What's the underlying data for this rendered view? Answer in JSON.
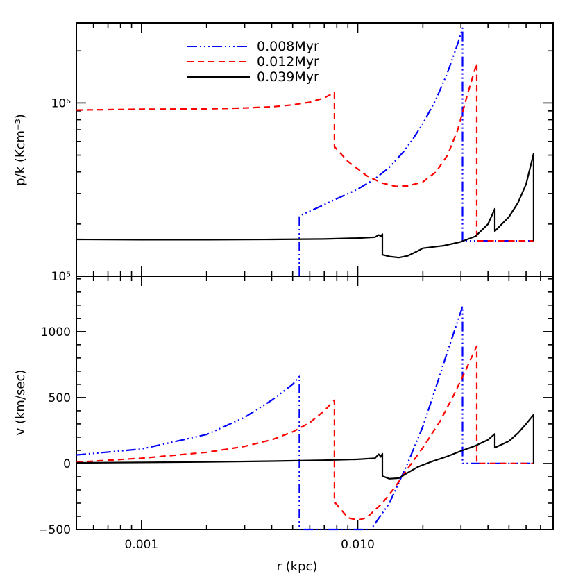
{
  "chart_data": [
    {
      "type": "line",
      "panel": "top",
      "ylabel": "p/k (Kcm⁻³)",
      "xlabel": "",
      "xscale": "log",
      "yscale": "log",
      "xlim": [
        0.0005,
        0.08
      ],
      "ylim": [
        100000,
        2900000
      ],
      "grid": false,
      "legend_position": "top-left",
      "yticks": [
        {
          "value": 1000000,
          "label": "10⁶"
        },
        {
          "value": 100000,
          "label": "10⁵"
        }
      ],
      "series": [
        {
          "name": "0.008Myr",
          "color": "#0000ff",
          "dash": "dash-dot-dot-dot",
          "x": [
            0.00537,
            0.00537,
            0.0055,
            0.0065,
            0.008,
            0.01,
            0.012,
            0.014,
            0.0162,
            0.0165,
            0.018,
            0.02,
            0.023,
            0.026,
            0.029,
            0.0305,
            0.0305,
            0.031,
            0.033,
            0.036,
            0.04,
            0.045,
            0.05,
            0.055,
            0.06,
            0.065
          ],
          "y": [
            100000,
            220000,
            226000,
            248000,
            280000,
            318000,
            365000,
            425000,
            520000,
            535000,
            620000,
            760000,
            1050000,
            1500000,
            2200000,
            2700000,
            160000,
            160000,
            160000,
            160000,
            160000,
            160000,
            160000,
            160000,
            160000,
            160000
          ]
        },
        {
          "name": "0.012Myr",
          "color": "#ff0000",
          "dash": "dashed",
          "x": [
            0.0005,
            0.001,
            0.002,
            0.003,
            0.004,
            0.005,
            0.006,
            0.007,
            0.0078,
            0.0078,
            0.009,
            0.011,
            0.013,
            0.015,
            0.017,
            0.02,
            0.023,
            0.026,
            0.029,
            0.032,
            0.0355,
            0.0355,
            0.036,
            0.04,
            0.045,
            0.05,
            0.055,
            0.06,
            0.065
          ],
          "y": [
            910000,
            920000,
            925000,
            935000,
            950000,
            975000,
            1010000,
            1070000,
            1150000,
            560000,
            460000,
            380000,
            345000,
            330000,
            332000,
            350000,
            400000,
            500000,
            700000,
            1100000,
            1700000,
            160000,
            160000,
            160000,
            160000,
            160000,
            160000,
            160000,
            160000
          ]
        },
        {
          "name": "0.039Myr",
          "color": "#000000",
          "dash": "solid",
          "x": [
            0.0005,
            0.001,
            0.002,
            0.004,
            0.007,
            0.01,
            0.012,
            0.0125,
            0.0128,
            0.013,
            0.013,
            0.014,
            0.0155,
            0.017,
            0.019,
            0.02,
            0.025,
            0.03,
            0.035,
            0.04,
            0.043,
            0.043,
            0.05,
            0.055,
            0.06,
            0.065,
            0.065
          ],
          "y": [
            163000,
            162500,
            162500,
            163000,
            164000,
            166000,
            168000,
            173000,
            170000,
            175000,
            133000,
            130000,
            128000,
            131000,
            140000,
            145000,
            150000,
            158000,
            170000,
            200000,
            245000,
            182000,
            220000,
            265000,
            340000,
            510000,
            160000
          ]
        }
      ]
    },
    {
      "type": "line",
      "panel": "bottom",
      "ylabel": "v (km/sec)",
      "xlabel": "r (kpc)",
      "xscale": "log",
      "yscale": "linear",
      "xlim": [
        0.0005,
        0.08
      ],
      "ylim": [
        -500,
        1420
      ],
      "grid": false,
      "yticks": [
        {
          "value": 1000,
          "label": "1000"
        },
        {
          "value": 500,
          "label": "500"
        },
        {
          "value": 0,
          "label": "0"
        },
        {
          "value": -500,
          "label": "−500"
        }
      ],
      "xticks": [
        {
          "value": 0.001,
          "label": "0.001"
        },
        {
          "value": 0.01,
          "label": "0.010"
        }
      ],
      "series": [
        {
          "name": "0.008Myr",
          "color": "#0000ff",
          "dash": "dash-dot-dot-dot",
          "x": [
            0.0005,
            0.001,
            0.002,
            0.003,
            0.004,
            0.005,
            0.00537,
            0.00537,
            0.0115,
            0.014,
            0.017,
            0.02,
            0.023,
            0.026,
            0.029,
            0.0305,
            0.0305,
            0.035,
            0.04,
            0.05,
            0.06,
            0.065
          ],
          "y": [
            65,
            110,
            220,
            350,
            480,
            600,
            660,
            -500,
            -500,
            -300,
            0,
            280,
            580,
            850,
            1080,
            1190,
            0,
            0,
            0,
            0,
            0,
            0
          ]
        },
        {
          "name": "0.012Myr",
          "color": "#ff0000",
          "dash": "dashed",
          "x": [
            0.0005,
            0.001,
            0.002,
            0.003,
            0.004,
            0.005,
            0.006,
            0.007,
            0.0078,
            0.0078,
            0.009,
            0.01,
            0.011,
            0.013,
            0.015,
            0.017,
            0.02,
            0.024,
            0.028,
            0.032,
            0.0355,
            0.0355,
            0.04,
            0.05,
            0.06,
            0.065
          ],
          "y": [
            10,
            40,
            85,
            130,
            180,
            240,
            310,
            400,
            480,
            -290,
            -410,
            -430,
            -410,
            -300,
            -170,
            -40,
            120,
            320,
            530,
            730,
            890,
            0,
            0,
            0,
            0,
            0
          ]
        },
        {
          "name": "0.039Myr",
          "color": "#000000",
          "dash": "solid",
          "x": [
            0.0005,
            0.001,
            0.002,
            0.004,
            0.007,
            0.01,
            0.012,
            0.0125,
            0.0128,
            0.013,
            0.013,
            0.014,
            0.0155,
            0.017,
            0.019,
            0.022,
            0.026,
            0.03,
            0.035,
            0.04,
            0.043,
            0.043,
            0.05,
            0.055,
            0.06,
            0.065,
            0.065
          ],
          "y": [
            5,
            8,
            12,
            18,
            25,
            32,
            40,
            70,
            50,
            75,
            -95,
            -115,
            -110,
            -70,
            -25,
            15,
            55,
            95,
            135,
            180,
            225,
            120,
            170,
            230,
            300,
            370,
            0
          ]
        }
      ]
    }
  ]
}
